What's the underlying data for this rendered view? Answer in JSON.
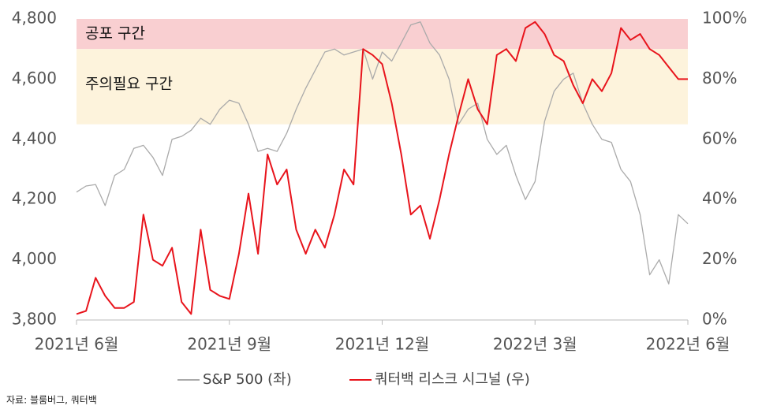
{
  "chart_data": {
    "type": "line",
    "categories": [
      "2021년 6월",
      null,
      null,
      null,
      null,
      null,
      null,
      null,
      null,
      null,
      null,
      null,
      null,
      null,
      null,
      null,
      "2021년 9월",
      null,
      null,
      null,
      null,
      null,
      null,
      null,
      null,
      null,
      null,
      null,
      null,
      null,
      null,
      null,
      "2021년 12월",
      null,
      null,
      null,
      null,
      null,
      null,
      null,
      null,
      null,
      null,
      null,
      null,
      null,
      null,
      null,
      "2022년 3월",
      null,
      null,
      null,
      null,
      null,
      null,
      null,
      null,
      null,
      null,
      null,
      null,
      null,
      null,
      null,
      "2022년 6월"
    ],
    "series": [
      {
        "name": "S&P 500 (좌)",
        "color": "#aaaaaa",
        "axis": "y",
        "values": [
          4225,
          4245,
          4250,
          4180,
          4280,
          4300,
          4370,
          4380,
          4340,
          4280,
          4400,
          4410,
          4430,
          4470,
          4450,
          4500,
          4530,
          4520,
          4450,
          4360,
          4370,
          4360,
          4420,
          4500,
          4570,
          4630,
          4690,
          4700,
          4680,
          4690,
          4700,
          4600,
          4690,
          4660,
          4720,
          4780,
          4790,
          4720,
          4680,
          4600,
          4450,
          4500,
          4520,
          4400,
          4350,
          4380,
          4280,
          4200,
          4260,
          4460,
          4560,
          4600,
          4620,
          4520,
          4450,
          4400,
          4390,
          4300,
          4260,
          4150,
          3950,
          4000,
          3920,
          4150,
          4120
        ]
      },
      {
        "name": "쿼터백 리스크 시그널 (우)",
        "color": "#e8141c",
        "axis": "y2",
        "values": [
          2,
          3,
          14,
          8,
          4,
          4,
          6,
          35,
          20,
          18,
          24,
          6,
          2,
          30,
          10,
          8,
          7,
          22,
          42,
          22,
          55,
          45,
          50,
          30,
          22,
          30,
          24,
          35,
          50,
          45,
          90,
          88,
          85,
          72,
          55,
          35,
          38,
          27,
          40,
          55,
          68,
          80,
          70,
          65,
          88,
          90,
          86,
          97,
          99,
          95,
          88,
          86,
          78,
          72,
          80,
          76,
          82,
          97,
          93,
          95,
          90,
          88,
          84,
          80,
          80
        ]
      }
    ],
    "ylim": [
      3800,
      4800
    ],
    "yticks": [
      {
        "value": 3800,
        "label": "3,800"
      },
      {
        "value": 4000,
        "label": "4,000"
      },
      {
        "value": 4200,
        "label": "4,200"
      },
      {
        "value": 4400,
        "label": "4,400"
      },
      {
        "value": 4600,
        "label": "4,600"
      },
      {
        "value": 4800,
        "label": "4,800"
      }
    ],
    "y2lim": [
      0,
      100
    ],
    "y2ticks": [
      {
        "value": 0,
        "label": "0%"
      },
      {
        "value": 20,
        "label": "20%"
      },
      {
        "value": 40,
        "label": "40%"
      },
      {
        "value": 60,
        "label": "60%"
      },
      {
        "value": 80,
        "label": "80%"
      },
      {
        "value": 100,
        "label": "100%"
      }
    ],
    "zones": [
      {
        "label": "공포 구간",
        "from": 90,
        "to": 100,
        "color": "#f9cfd1",
        "axis": "y2"
      },
      {
        "label": "주의필요 구간",
        "from": 65,
        "to": 90,
        "color": "#fdf3dc",
        "axis": "y2"
      }
    ],
    "source": "자료: 블룸버그, 쿼터백"
  }
}
